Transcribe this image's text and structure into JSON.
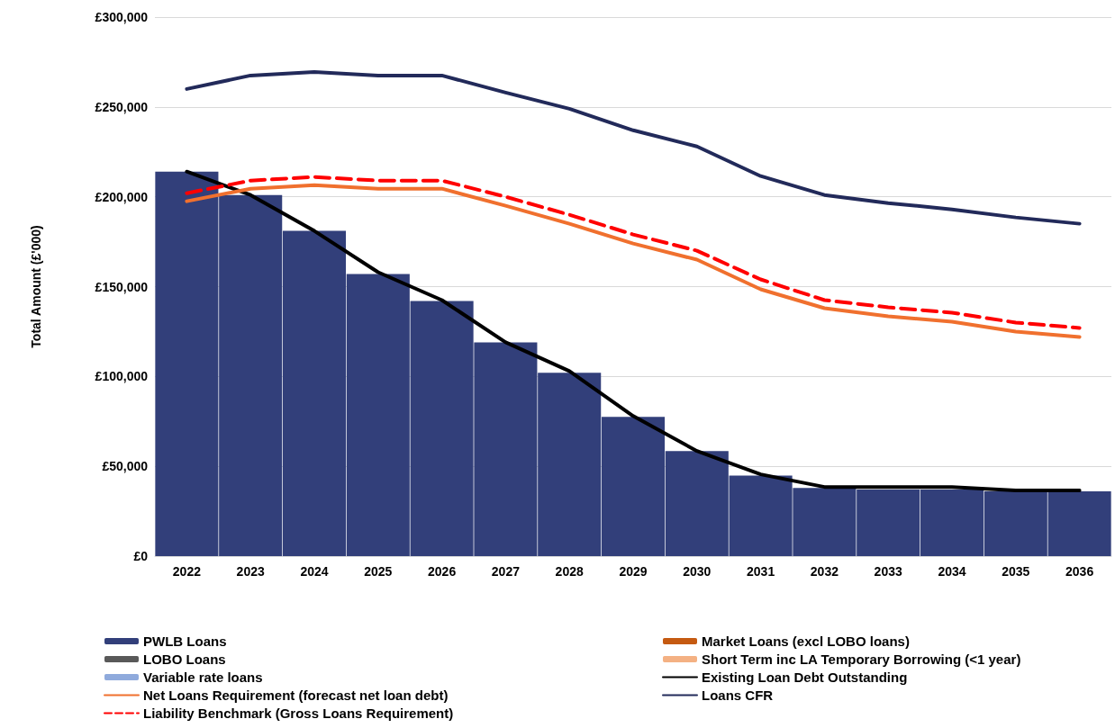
{
  "chart_data": {
    "type": "bar",
    "ylabel": "Total Amount (£'000)",
    "categories": [
      "2022",
      "2023",
      "2024",
      "2025",
      "2026",
      "2027",
      "2028",
      "2029",
      "2030",
      "2031",
      "2032",
      "2033",
      "2034",
      "2035",
      "2036"
    ],
    "stacked": true,
    "series": [
      {
        "name": "PWLB Loans",
        "color": "#323f7a",
        "values": [
          214000,
          201000,
          181000,
          157000,
          142000,
          119000,
          102000,
          77500,
          58500,
          44800,
          38000,
          37000,
          37000,
          36000,
          36000
        ]
      },
      {
        "name": "Market Loans (excl LOBO loans)",
        "type": "bar",
        "color": "#c55a11",
        "values": [
          0,
          0,
          0,
          0,
          0,
          0,
          0,
          0,
          0,
          0,
          0,
          0,
          0,
          0,
          0
        ]
      },
      {
        "name": "LOBO Loans",
        "type": "bar",
        "color": "#595959",
        "values": [
          0,
          0,
          0,
          0,
          0,
          0,
          0,
          0,
          0,
          0,
          0,
          0,
          0,
          0,
          0
        ]
      },
      {
        "name": "Short Term inc LA Temporary Borrowing (<1 year)",
        "type": "bar",
        "color": "#f4b183",
        "values": [
          0,
          0,
          0,
          0,
          0,
          0,
          0,
          0,
          0,
          0,
          0,
          0,
          0,
          0,
          0
        ]
      },
      {
        "name": "Variable rate loans",
        "type": "bar",
        "color": "#8faadc",
        "values": [
          0,
          0,
          0,
          0,
          0,
          0,
          0,
          0,
          0,
          0,
          0,
          0,
          0,
          0,
          0
        ]
      },
      {
        "name": "Existing Loan Debt Outstanding",
        "type": "line",
        "color": "#000000",
        "line_style": "solid",
        "values": [
          214000,
          201000,
          181000,
          158000,
          142500,
          119000,
          103000,
          78000,
          58500,
          45500,
          38500,
          38500,
          38500,
          36500,
          36500
        ]
      },
      {
        "name": "Net Loans Requirement (forecast net loan debt)",
        "type": "line",
        "color": "#f0702e",
        "line_style": "solid",
        "values": [
          197500,
          204500,
          206500,
          204500,
          204500,
          195000,
          185000,
          174000,
          165000,
          148500,
          138000,
          133500,
          130500,
          125000,
          122000
        ]
      },
      {
        "name": "Loans CFR",
        "type": "line",
        "color": "#222a5a",
        "line_style": "solid",
        "values": [
          260000,
          267500,
          269500,
          267500,
          267500,
          258000,
          249000,
          237000,
          228000,
          211500,
          201000,
          196500,
          193000,
          188500,
          185000
        ]
      },
      {
        "name": "Liability Benchmark (Gross Loans Requirement)",
        "type": "line",
        "color": "#ff0000",
        "line_style": "dashed",
        "values": [
          202000,
          209000,
          211000,
          209000,
          209000,
          200000,
          190000,
          179000,
          170000,
          154000,
          142500,
          138500,
          135500,
          130000,
          127000
        ]
      }
    ],
    "ylim": [
      0,
      300000
    ],
    "yticks": [
      {
        "value": 0,
        "label": "£0"
      },
      {
        "value": 50000,
        "label": "£50,000"
      },
      {
        "value": 100000,
        "label": "£100,000"
      },
      {
        "value": 150000,
        "label": "£150,000"
      },
      {
        "value": 200000,
        "label": "£200,000"
      },
      {
        "value": 250000,
        "label": "£250,000"
      },
      {
        "value": 300000,
        "label": "£300,000"
      }
    ],
    "grid": "y",
    "legend": "bottom",
    "marker": "none"
  }
}
